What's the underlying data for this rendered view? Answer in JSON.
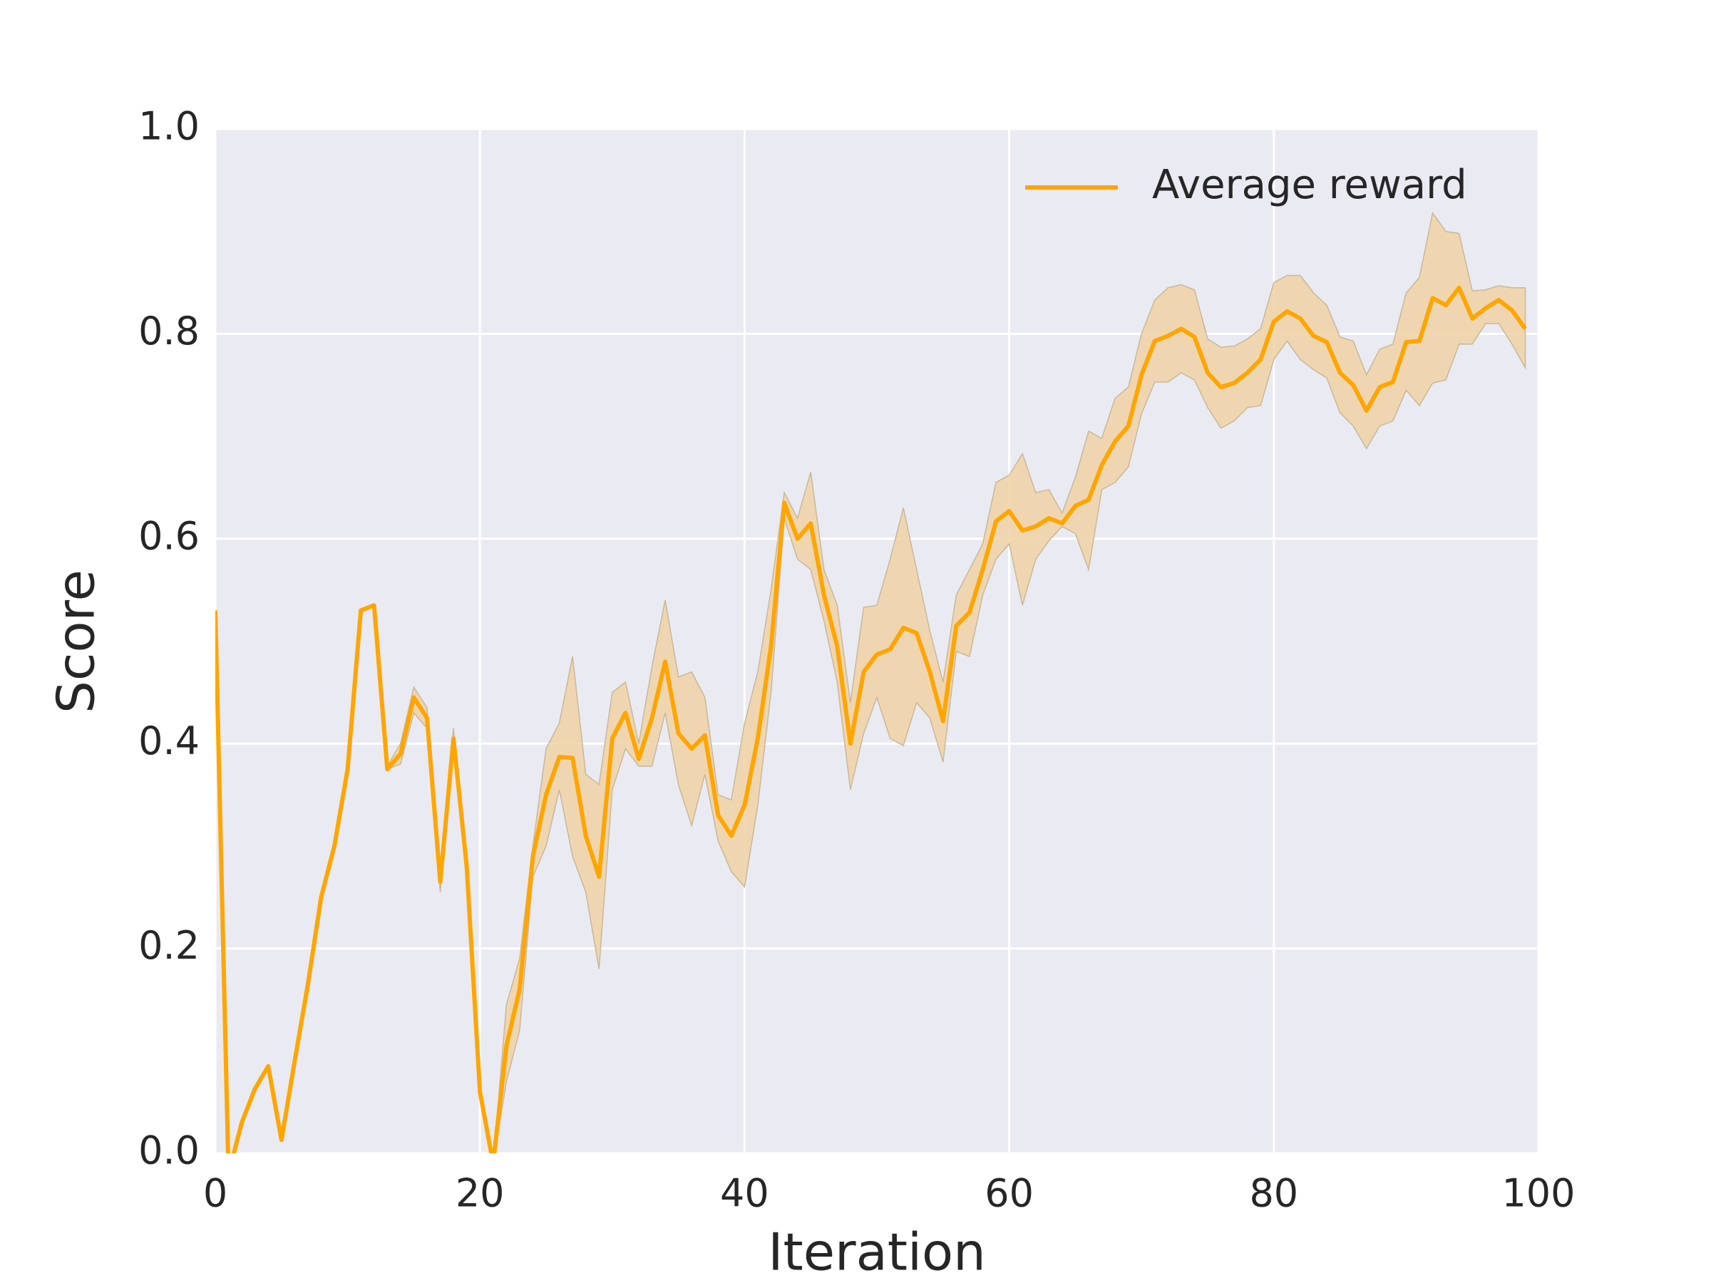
{
  "chart_data": {
    "type": "line",
    "xlabel": "Iteration",
    "ylabel": "Score",
    "xlim": [
      0,
      100
    ],
    "xticks": [
      0,
      20,
      40,
      60,
      80,
      100
    ],
    "ylim": [
      0,
      1
    ],
    "yticks": [
      {
        "value": 0,
        "label": "0.0"
      },
      0.2,
      0.4,
      0.6,
      0.8,
      {
        "value": 1,
        "label": "1.0"
      }
    ],
    "grid": true,
    "legend": "upper right",
    "x": [
      0,
      1,
      2,
      3,
      4,
      5,
      6,
      7,
      8,
      9,
      10,
      11,
      12,
      13,
      14,
      15,
      16,
      17,
      18,
      19,
      20,
      21,
      22,
      23,
      24,
      25,
      26,
      27,
      28,
      29,
      30,
      31,
      32,
      33,
      34,
      35,
      36,
      37,
      38,
      39,
      40,
      41,
      42,
      43,
      44,
      45,
      46,
      47,
      48,
      49,
      50,
      51,
      52,
      53,
      54,
      55,
      56,
      57,
      58,
      59,
      60,
      61,
      62,
      63,
      64,
      65,
      66,
      67,
      68,
      69,
      70,
      71,
      72,
      73,
      74,
      75,
      76,
      77,
      78,
      79,
      80,
      81,
      82,
      83,
      84,
      85,
      86,
      87,
      88,
      89,
      90,
      91,
      92,
      93,
      94,
      95,
      96,
      97,
      98,
      99
    ],
    "series": [
      {
        "name": "Average reward",
        "color": "#ffa500",
        "band_color": "#f0d4a8",
        "values": [
          0.53,
          -0.02,
          0.03,
          0.063,
          0.085,
          0.013,
          0.09,
          0.165,
          0.25,
          0.3,
          0.375,
          0.53,
          0.535,
          0.375,
          0.39,
          0.445,
          0.425,
          0.265,
          0.405,
          0.28,
          0.06,
          -0.01,
          0.105,
          0.16,
          0.29,
          0.35,
          0.387,
          0.386,
          0.31,
          0.27,
          0.405,
          0.43,
          0.385,
          0.425,
          0.48,
          0.41,
          0.395,
          0.408,
          0.33,
          0.31,
          0.34,
          0.405,
          0.495,
          0.635,
          0.6,
          0.615,
          0.545,
          0.495,
          0.4,
          0.47,
          0.487,
          0.492,
          0.513,
          0.508,
          0.47,
          0.422,
          0.515,
          0.528,
          0.57,
          0.617,
          0.627,
          0.608,
          0.612,
          0.62,
          0.615,
          0.632,
          0.638,
          0.672,
          0.695,
          0.71,
          0.76,
          0.793,
          0.798,
          0.805,
          0.797,
          0.762,
          0.748,
          0.752,
          0.762,
          0.775,
          0.812,
          0.822,
          0.815,
          0.798,
          0.792,
          0.762,
          0.75,
          0.725,
          0.748,
          0.753,
          0.792,
          0.793,
          0.835,
          0.828,
          0.845,
          0.815,
          0.825,
          0.833,
          0.823,
          0.805
        ],
        "lower": [
          0.53,
          -0.02,
          0.03,
          0.063,
          0.085,
          0.013,
          0.09,
          0.165,
          0.25,
          0.3,
          0.375,
          0.53,
          0.535,
          0.375,
          0.38,
          0.43,
          0.415,
          0.255,
          0.395,
          0.28,
          0.06,
          -0.01,
          0.07,
          0.12,
          0.27,
          0.3,
          0.355,
          0.29,
          0.255,
          0.18,
          0.355,
          0.395,
          0.378,
          0.378,
          0.43,
          0.36,
          0.32,
          0.37,
          0.305,
          0.275,
          0.26,
          0.34,
          0.45,
          0.62,
          0.58,
          0.57,
          0.52,
          0.46,
          0.355,
          0.41,
          0.445,
          0.405,
          0.398,
          0.44,
          0.425,
          0.382,
          0.49,
          0.485,
          0.545,
          0.58,
          0.595,
          0.535,
          0.58,
          0.598,
          0.612,
          0.605,
          0.57,
          0.648,
          0.655,
          0.67,
          0.722,
          0.753,
          0.753,
          0.762,
          0.755,
          0.728,
          0.708,
          0.715,
          0.728,
          0.73,
          0.775,
          0.793,
          0.775,
          0.765,
          0.757,
          0.723,
          0.71,
          0.688,
          0.71,
          0.715,
          0.745,
          0.73,
          0.752,
          0.755,
          0.79,
          0.79,
          0.81,
          0.81,
          0.79,
          0.767
        ],
        "upper": [
          0.53,
          -0.02,
          0.03,
          0.063,
          0.085,
          0.013,
          0.09,
          0.165,
          0.25,
          0.3,
          0.375,
          0.53,
          0.535,
          0.378,
          0.4,
          0.455,
          0.435,
          0.275,
          0.415,
          0.28,
          0.06,
          -0.01,
          0.145,
          0.19,
          0.3,
          0.395,
          0.42,
          0.485,
          0.37,
          0.36,
          0.45,
          0.46,
          0.4,
          0.475,
          0.54,
          0.465,
          0.47,
          0.445,
          0.35,
          0.345,
          0.42,
          0.47,
          0.55,
          0.645,
          0.62,
          0.665,
          0.57,
          0.535,
          0.44,
          0.533,
          0.535,
          0.58,
          0.63,
          0.57,
          0.51,
          0.46,
          0.545,
          0.57,
          0.595,
          0.655,
          0.662,
          0.683,
          0.645,
          0.648,
          0.625,
          0.66,
          0.705,
          0.698,
          0.737,
          0.748,
          0.8,
          0.833,
          0.845,
          0.848,
          0.843,
          0.795,
          0.787,
          0.788,
          0.795,
          0.805,
          0.85,
          0.857,
          0.857,
          0.84,
          0.828,
          0.797,
          0.793,
          0.76,
          0.785,
          0.79,
          0.84,
          0.855,
          0.918,
          0.9,
          0.898,
          0.842,
          0.843,
          0.847,
          0.845,
          0.845
        ]
      }
    ]
  }
}
